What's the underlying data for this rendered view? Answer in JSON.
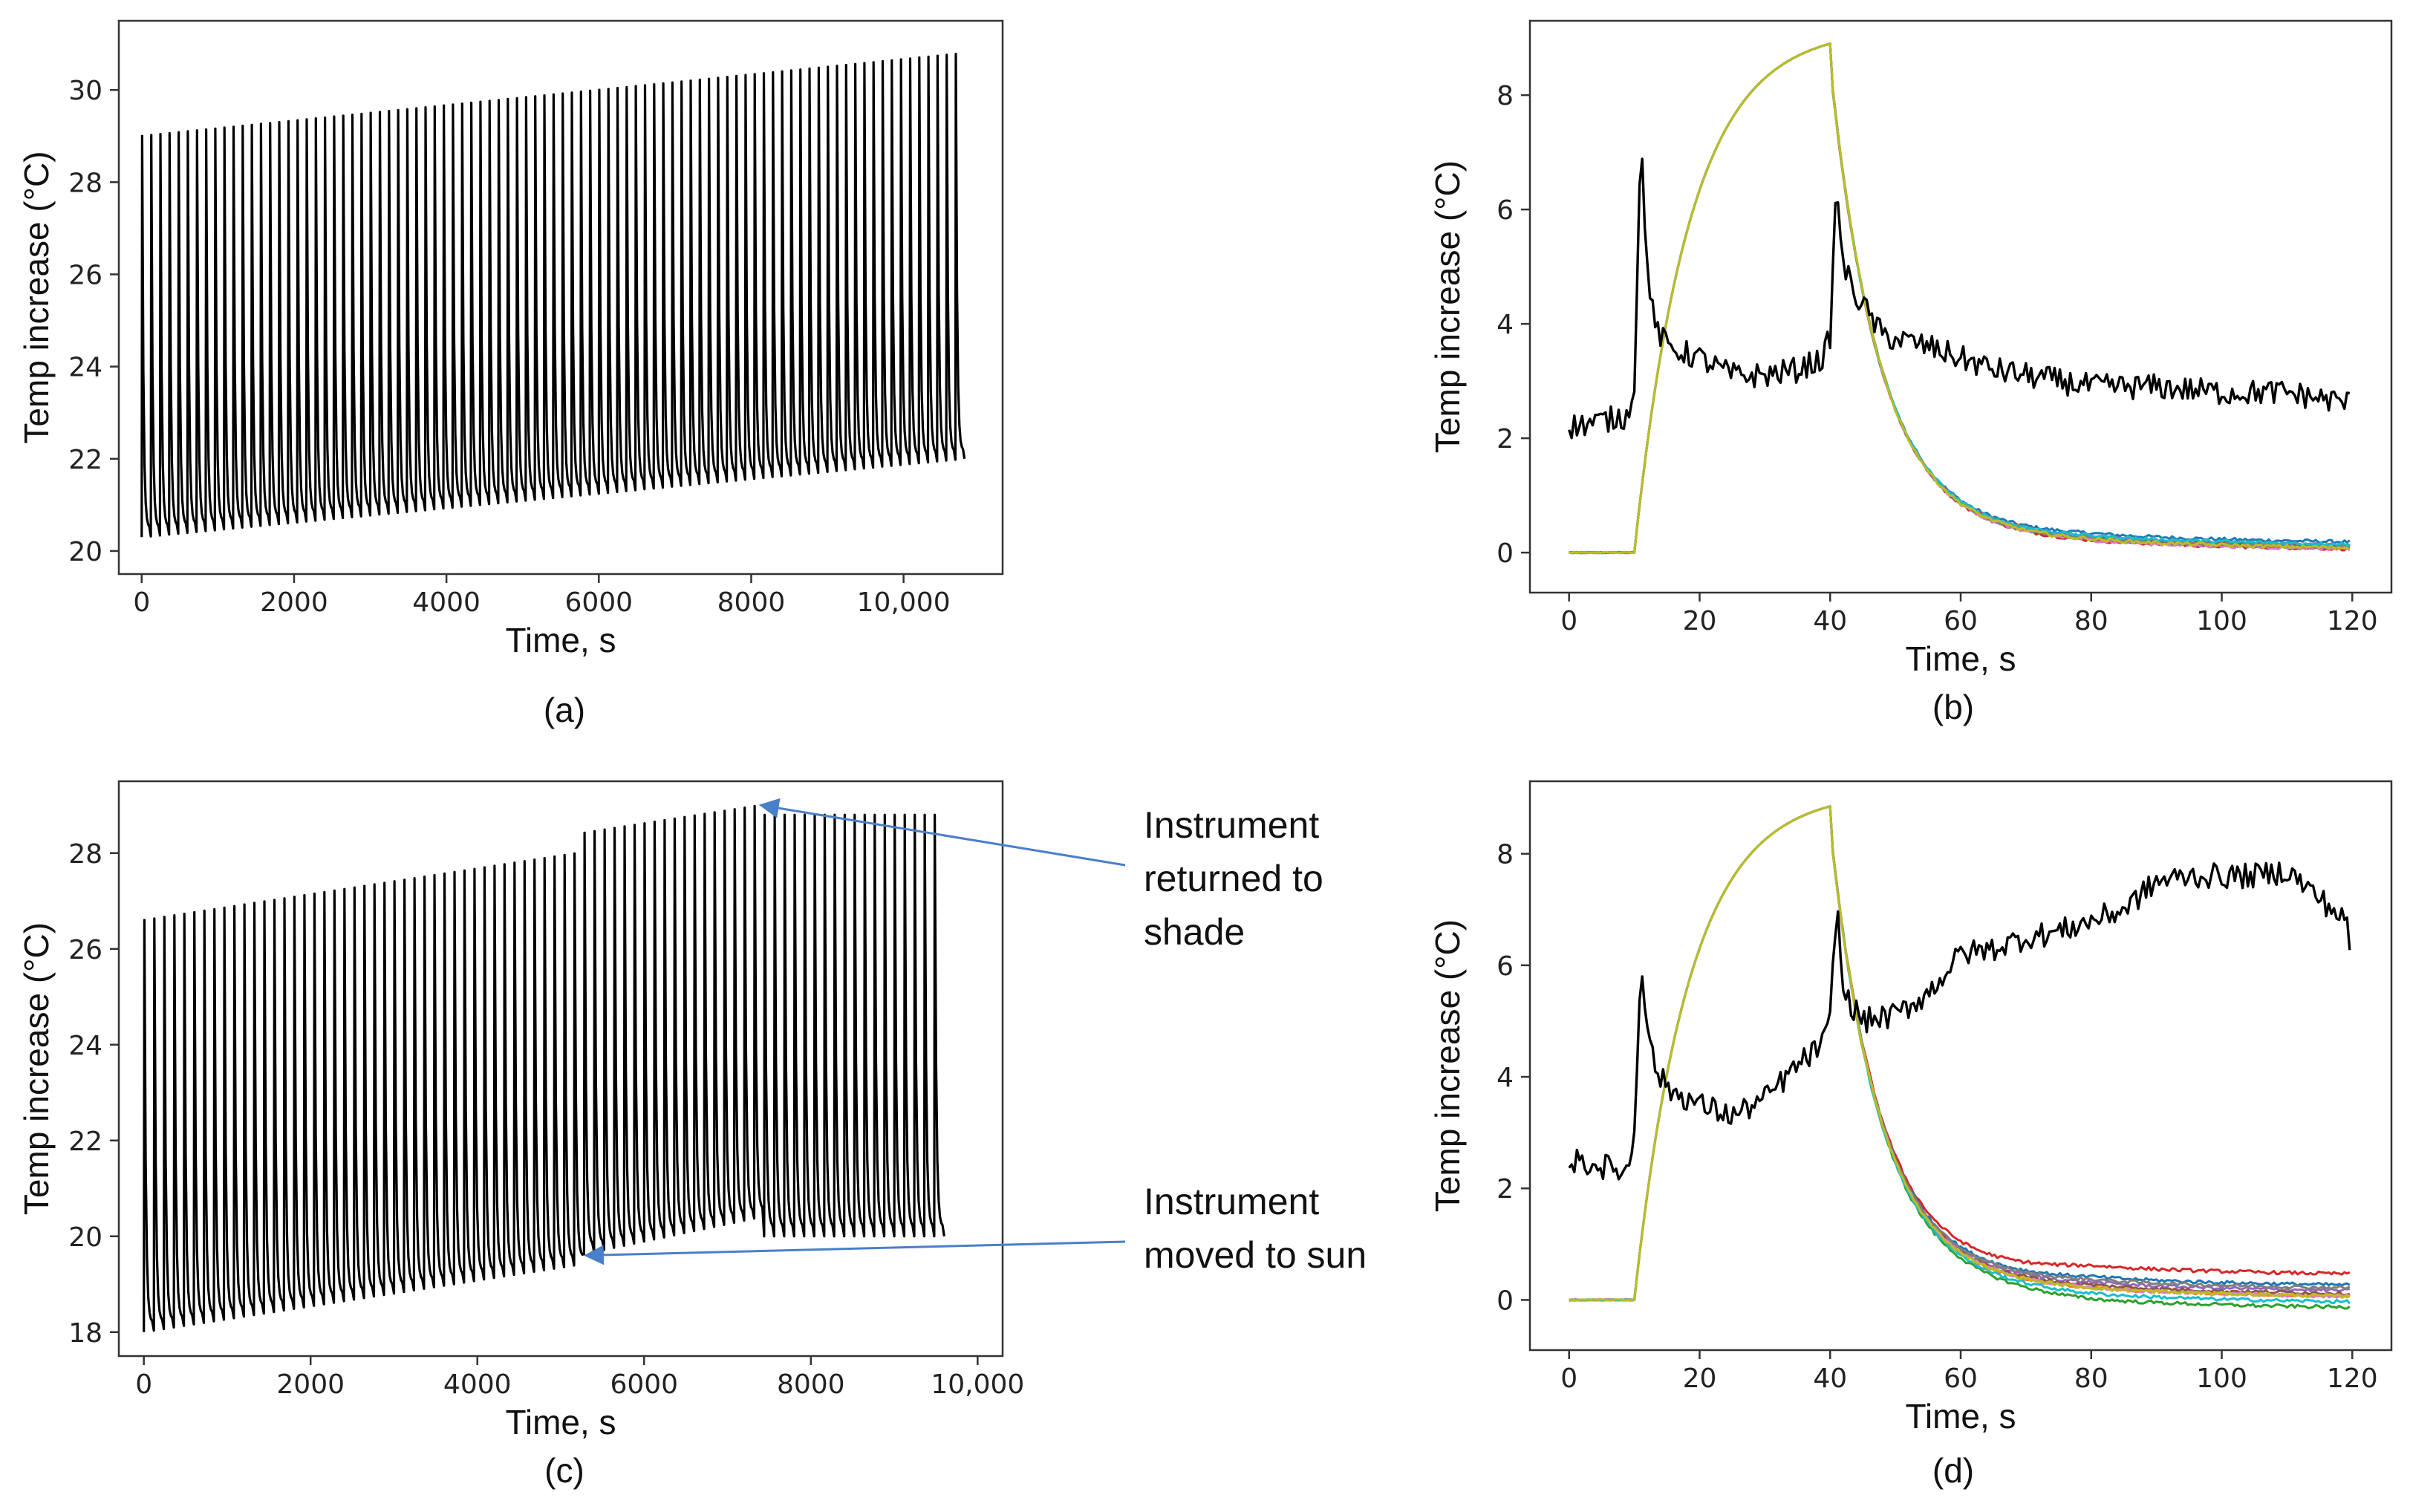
{
  "chart_data": [
    {
      "id": "a",
      "type": "line",
      "caption": "(a)",
      "xlabel": "Time, s",
      "ylabel": "Temp increase (°C)",
      "xlim": [
        -300,
        11300
      ],
      "ylim": [
        19.5,
        31.5
      ],
      "xticks": [
        0,
        2000,
        4000,
        6000,
        8000,
        10000
      ],
      "xticklabels": [
        "0",
        "2000",
        "4000",
        "6000",
        "8000",
        "10,000"
      ],
      "yticks": [
        20,
        22,
        24,
        26,
        28,
        30
      ],
      "yticklabels": [
        "20",
        "22",
        "24",
        "26",
        "28",
        "30"
      ],
      "series": [
        {
          "color": "#000000",
          "pattern": "repeated heat pulses",
          "duration_s": 10800,
          "cycles": 90,
          "baseline_start": 20.3,
          "baseline_end": 22.0,
          "peak_start": 29.0,
          "peak_end": 30.8
        }
      ]
    },
    {
      "id": "b",
      "type": "line",
      "caption": "(b)",
      "xlabel": "Time, s",
      "ylabel": "Temp increase (°C)",
      "xlim": [
        -6,
        126
      ],
      "ylim": [
        -0.7,
        9.3
      ],
      "xticks": [
        0,
        20,
        40,
        60,
        80,
        100,
        120
      ],
      "xticklabels": [
        "0",
        "20",
        "40",
        "60",
        "80",
        "100",
        "120"
      ],
      "yticks": [
        0,
        2,
        4,
        6,
        8
      ],
      "yticklabels": [
        "0",
        "2",
        "4",
        "6",
        "8"
      ],
      "pulse": {
        "heat_on_s": 10,
        "heat_off_s": 40,
        "peak": 8.9
      },
      "series": [
        {
          "color": "#1f77b4",
          "end_value": 0.12
        },
        {
          "color": "#ff7f0e",
          "end_value": 0.05
        },
        {
          "color": "#2ca02c",
          "end_value": 0.02
        },
        {
          "color": "#d62728",
          "end_value": 0.0
        },
        {
          "color": "#9467bd",
          "end_value": 0.06
        },
        {
          "color": "#8c564b",
          "end_value": 0.04
        },
        {
          "color": "#e377c2",
          "end_value": 0.0
        },
        {
          "color": "#7f7f7f",
          "end_value": 0.03
        },
        {
          "color": "#17becf",
          "end_value": 0.08
        },
        {
          "color": "#bcbd22",
          "end_value": 0.02
        }
      ],
      "noise_series": {
        "color": "#000000",
        "x": [
          0,
          5,
          9,
          10,
          11,
          12,
          13,
          15,
          20,
          25,
          30,
          35,
          39,
          40,
          41,
          42,
          44,
          48,
          55,
          60,
          65,
          70,
          80,
          90,
          100,
          110,
          120
        ],
        "y": [
          2.2,
          2.3,
          2.4,
          3.0,
          7.2,
          5.0,
          4.0,
          3.6,
          3.4,
          3.1,
          3.1,
          3.2,
          3.4,
          3.8,
          6.5,
          5.0,
          4.5,
          3.8,
          3.6,
          3.4,
          3.2,
          3.1,
          2.9,
          2.9,
          2.8,
          2.8,
          2.6
        ]
      }
    },
    {
      "id": "c",
      "type": "line",
      "caption": "(c)",
      "xlabel": "Time, s",
      "ylabel": "Temp increase (°C)",
      "xlim": [
        -300,
        10300
      ],
      "ylim": [
        17.5,
        29.5
      ],
      "xticks": [
        0,
        2000,
        4000,
        6000,
        8000,
        10000
      ],
      "xticklabels": [
        "0",
        "2000",
        "4000",
        "6000",
        "8000",
        "10,000"
      ],
      "yticks": [
        18,
        20,
        22,
        24,
        26,
        28
      ],
      "yticklabels": [
        "18",
        "20",
        "22",
        "24",
        "26",
        "28"
      ],
      "series": [
        {
          "color": "#000000",
          "pattern": "repeated heat pulses",
          "duration_s": 9600,
          "cycles": 80,
          "phases": [
            {
              "t_start": 0,
              "t_end": 5200,
              "baseline_start": 18.0,
              "baseline_end": 19.4,
              "peak_start": 26.6,
              "peak_end": 28.0
            },
            {
              "t_start": 5200,
              "t_end": 7400,
              "baseline_start": 19.6,
              "baseline_end": 20.4,
              "peak_start": 28.4,
              "peak_end": 29.0
            },
            {
              "t_start": 7400,
              "t_end": 9600,
              "baseline_start": 20.0,
              "baseline_end": 20.0,
              "peak_start": 28.8,
              "peak_end": 28.8
            }
          ]
        }
      ],
      "annotations": [
        {
          "text": [
            "Instrument",
            "returned to",
            "shade"
          ],
          "arrow_to_x": 7400,
          "arrow_to_y": 29.0
        },
        {
          "text": [
            "Instrument",
            "moved to sun"
          ],
          "arrow_to_x": 5300,
          "arrow_to_y": 19.6
        }
      ]
    },
    {
      "id": "d",
      "type": "line",
      "caption": "(d)",
      "xlabel": "Time, s",
      "ylabel": "Temp increase (°C)",
      "xlim": [
        -6,
        126
      ],
      "ylim": [
        -0.9,
        9.3
      ],
      "xticks": [
        0,
        20,
        40,
        60,
        80,
        100,
        120
      ],
      "xticklabels": [
        "0",
        "20",
        "40",
        "60",
        "80",
        "100",
        "120"
      ],
      "yticks": [
        0,
        2,
        4,
        6,
        8
      ],
      "yticklabels": [
        "0",
        "2",
        "4",
        "6",
        "8"
      ],
      "pulse": {
        "heat_on_s": 10,
        "heat_off_s": 40,
        "peak": 8.85
      },
      "series": [
        {
          "color": "#d62728",
          "end_value": 0.4
        },
        {
          "color": "#1f77b4",
          "end_value": 0.2
        },
        {
          "color": "#ff7f0e",
          "end_value": 0.0
        },
        {
          "color": "#2ca02c",
          "end_value": -0.2
        },
        {
          "color": "#9467bd",
          "end_value": 0.1
        },
        {
          "color": "#8c564b",
          "end_value": 0.05
        },
        {
          "color": "#e377c2",
          "end_value": 0.0
        },
        {
          "color": "#7f7f7f",
          "end_value": 0.15
        },
        {
          "color": "#17becf",
          "end_value": -0.1
        },
        {
          "color": "#bcbd22",
          "end_value": 0.0
        }
      ],
      "noise_series": {
        "color": "#000000",
        "x": [
          0,
          5,
          9,
          10,
          11,
          12,
          13,
          15,
          20,
          25,
          30,
          35,
          39,
          40,
          41,
          42,
          45,
          50,
          55,
          60,
          65,
          70,
          75,
          80,
          85,
          90,
          95,
          100,
          105,
          110,
          115,
          119,
          120
        ],
        "y": [
          2.5,
          2.4,
          2.3,
          3.0,
          6.1,
          5.0,
          4.2,
          3.8,
          3.5,
          3.3,
          3.6,
          4.2,
          4.6,
          5.0,
          7.2,
          5.5,
          5.0,
          5.1,
          5.5,
          6.2,
          6.3,
          6.5,
          6.6,
          6.8,
          7.0,
          7.5,
          7.6,
          7.6,
          7.6,
          7.7,
          7.2,
          6.8,
          6.1
        ]
      }
    }
  ]
}
